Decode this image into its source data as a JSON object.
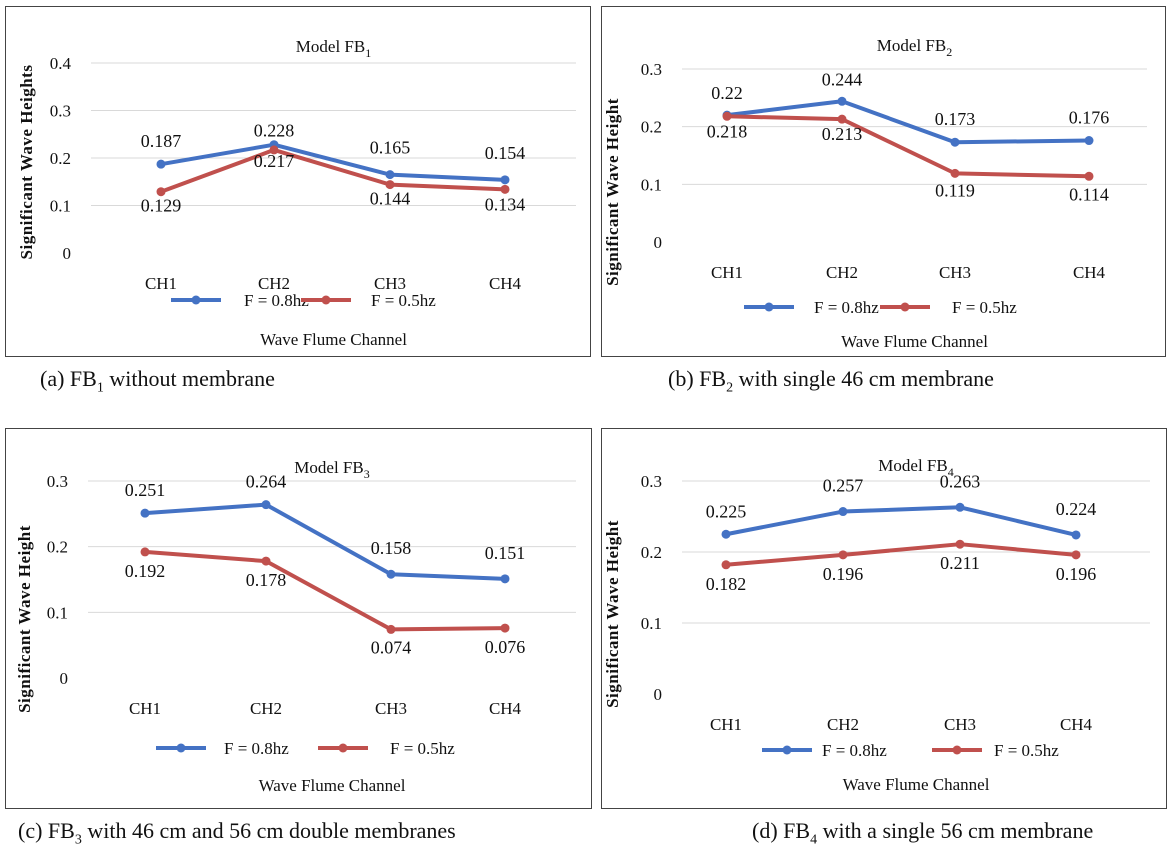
{
  "colors": {
    "series1": "#4472C4",
    "series2": "#C0504D",
    "grid": "#D9D9D9",
    "border": "#444444"
  },
  "chart_data": [
    {
      "type": "line",
      "title": "Model FB",
      "title_sub": "1",
      "categories": [
        "CH1",
        "CH2",
        "CH3",
        "CH4"
      ],
      "series": [
        {
          "name": "F = 0.8hz",
          "values": [
            0.187,
            0.228,
            0.165,
            0.154
          ],
          "labels": [
            "0.187",
            "0.228",
            "0.165",
            "0.154"
          ]
        },
        {
          "name": "F = 0.5hz",
          "values": [
            0.129,
            0.217,
            0.144,
            0.134
          ],
          "labels": [
            "0.129",
            "0.217",
            "0.144",
            "0.134"
          ]
        }
      ],
      "xlabel": "Wave Flume Channel",
      "ylabel": "Significant Wave Heights",
      "ylim": [
        0,
        0.4
      ],
      "yticks": [
        "0",
        "0.1",
        "0.2",
        "0.3",
        "0.4"
      ],
      "grid": true,
      "legend": "bottom"
    },
    {
      "type": "line",
      "title": "Model FB",
      "title_sub": "2",
      "categories": [
        "CH1",
        "CH2",
        "CH3",
        "CH4"
      ],
      "series": [
        {
          "name": "F = 0.8hz",
          "values": [
            0.22,
            0.244,
            0.173,
            0.176
          ],
          "labels": [
            "0.22",
            "0.244",
            "0.173",
            "0.176"
          ]
        },
        {
          "name": "F = 0.5hz",
          "values": [
            0.218,
            0.213,
            0.119,
            0.114
          ],
          "labels": [
            "0.218",
            "0.213",
            "0.119",
            "0.114"
          ]
        }
      ],
      "xlabel": "Wave Flume Channel",
      "ylabel": "Significant Wave Height",
      "ylim": [
        0,
        0.3
      ],
      "yticks": [
        "0",
        "0.1",
        "0.2",
        "0.3"
      ],
      "grid": true,
      "legend": "bottom"
    },
    {
      "type": "line",
      "title": "Model FB",
      "title_sub": "3",
      "categories": [
        "CH1",
        "CH2",
        "CH3",
        "CH4"
      ],
      "series": [
        {
          "name": "F = 0.8hz",
          "values": [
            0.251,
            0.264,
            0.158,
            0.151
          ],
          "labels": [
            "0.251",
            "0.264",
            "0.158",
            "0.151"
          ]
        },
        {
          "name": "F = 0.5hz",
          "values": [
            0.192,
            0.178,
            0.074,
            0.076
          ],
          "labels": [
            "0.192",
            "0.178",
            "0.074",
            "0.076"
          ]
        }
      ],
      "xlabel": "Wave Flume Channel",
      "ylabel": "Significant Wave Height",
      "ylim": [
        0,
        0.3
      ],
      "yticks": [
        "0",
        "0.1",
        "0.2",
        "0.3"
      ],
      "grid": true,
      "legend": "bottom"
    },
    {
      "type": "line",
      "title": "Model FB",
      "title_sub": "4",
      "categories": [
        "CH1",
        "CH2",
        "CH3",
        "CH4"
      ],
      "series": [
        {
          "name": "F = 0.8hz",
          "values": [
            0.225,
            0.257,
            0.263,
            0.224
          ],
          "labels": [
            "0.225",
            "0.257",
            "0.263",
            "0.224"
          ]
        },
        {
          "name": "F = 0.5hz",
          "values": [
            0.182,
            0.196,
            0.211,
            0.196
          ],
          "labels": [
            "0.182",
            "0.196",
            "0.211",
            "0.196"
          ]
        }
      ],
      "xlabel": "Wave Flume Channel",
      "ylabel": "Significant Wave Height",
      "ylim": [
        0,
        0.3
      ],
      "yticks": [
        "0",
        "0.1",
        "0.2",
        "0.3"
      ],
      "grid": true,
      "legend": "bottom"
    }
  ],
  "captions": [
    {
      "prefix": "(a)   FB",
      "sub": "1",
      "rest": " without membrane"
    },
    {
      "prefix": "(b) FB",
      "sub": "2",
      "rest": " with single 46 cm membrane"
    },
    {
      "prefix": "(c) FB",
      "sub": "3",
      "rest": " with 46 cm and 56 cm double membranes"
    },
    {
      "prefix": "(d) FB",
      "sub": "4",
      "rest": " with a single 56 cm membrane"
    }
  ]
}
